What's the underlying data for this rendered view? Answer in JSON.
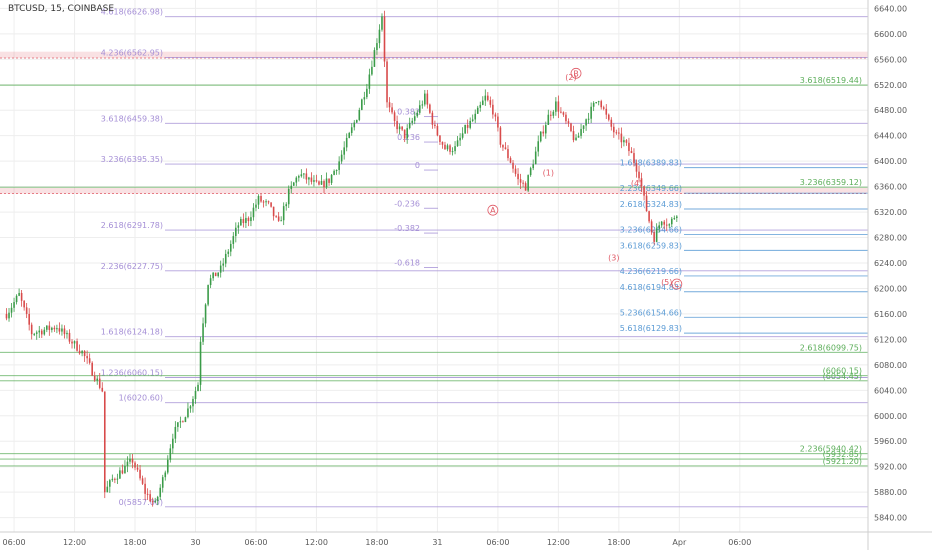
{
  "header": {
    "symbol_title": "BTCUSD, 15, COINBASE"
  },
  "colors": {
    "up": "#3a9b48",
    "down": "#d84a4a",
    "purple": "#a58fd6",
    "green": "#5cae5a",
    "blue": "#5b9bd5",
    "red": "#e05a66",
    "navy": "#3b4a8c",
    "orange": "#f0a43a",
    "grid": "#eeeeee"
  },
  "chart_data": {
    "type": "candlestick",
    "ylim": [
      5830,
      6650
    ],
    "y_ticks": [
      "6640.00",
      "6600.00",
      "6560.00",
      "6520.00",
      "6480.00",
      "6440.00",
      "6400.00",
      "6360.00",
      "6320.00",
      "6280.00",
      "6240.00",
      "6200.00",
      "6160.00",
      "6120.00",
      "6080.00",
      "6040.00",
      "6000.00",
      "5960.00",
      "5920.00",
      "5880.00",
      "5840.00"
    ],
    "x_ticks": [
      "06:00",
      "12:00",
      "18:00",
      "30",
      "06:00",
      "12:00",
      "18:00",
      "31",
      "06:00",
      "12:00",
      "18:00",
      "Apr",
      "06:00"
    ],
    "x_tick_index": [
      3,
      27,
      51,
      75,
      99,
      123,
      147,
      171,
      195,
      219,
      243,
      267,
      291
    ],
    "num_bars": 302,
    "price_path": [
      [
        0,
        6160
      ],
      [
        5,
        6190
      ],
      [
        10,
        6130
      ],
      [
        20,
        6140
      ],
      [
        30,
        6100
      ],
      [
        38,
        6040
      ],
      [
        39,
        5880
      ],
      [
        42,
        5900
      ],
      [
        50,
        5930
      ],
      [
        55,
        5880
      ],
      [
        59,
        5860
      ],
      [
        62,
        5900
      ],
      [
        66,
        5970
      ],
      [
        72,
        6010
      ],
      [
        76,
        6050
      ],
      [
        77,
        6120
      ],
      [
        80,
        6210
      ],
      [
        85,
        6230
      ],
      [
        88,
        6260
      ],
      [
        92,
        6300
      ],
      [
        96,
        6310
      ],
      [
        100,
        6340
      ],
      [
        104,
        6330
      ],
      [
        108,
        6300
      ],
      [
        112,
        6350
      ],
      [
        116,
        6380
      ],
      [
        120,
        6370
      ],
      [
        124,
        6360
      ],
      [
        128,
        6370
      ],
      [
        132,
        6400
      ],
      [
        135,
        6430
      ],
      [
        139,
        6470
      ],
      [
        143,
        6520
      ],
      [
        147,
        6590
      ],
      [
        149,
        6630
      ],
      [
        151,
        6490
      ],
      [
        154,
        6460
      ],
      [
        158,
        6440
      ],
      [
        162,
        6470
      ],
      [
        166,
        6500
      ],
      [
        170,
        6450
      ],
      [
        174,
        6420
      ],
      [
        178,
        6420
      ],
      [
        182,
        6450
      ],
      [
        186,
        6470
      ],
      [
        190,
        6500
      ],
      [
        193,
        6480
      ],
      [
        196,
        6430
      ],
      [
        200,
        6400
      ],
      [
        203,
        6370
      ],
      [
        206,
        6360
      ],
      [
        209,
        6400
      ],
      [
        212,
        6440
      ],
      [
        215,
        6470
      ],
      [
        218,
        6490
      ],
      [
        222,
        6460
      ],
      [
        226,
        6430
      ],
      [
        229,
        6460
      ],
      [
        232,
        6480
      ],
      [
        235,
        6500
      ],
      [
        239,
        6460
      ],
      [
        242,
        6440
      ],
      [
        245,
        6430
      ],
      [
        248,
        6410
      ],
      [
        251,
        6380
      ],
      [
        253,
        6340
      ],
      [
        256,
        6290
      ],
      [
        257,
        6280
      ],
      [
        260,
        6310
      ],
      [
        263,
        6300
      ],
      [
        266,
        6320
      ]
    ],
    "fib_sets": [
      {
        "name": "fib-left",
        "color": "purple",
        "levels": [
          {
            "label": "4.618(6626.98)",
            "price": 6626.98
          },
          {
            "label": "4.236(6562.95)",
            "price": 6562.95
          },
          {
            "label": "3.618(6459.38)",
            "price": 6459.38
          },
          {
            "label": "3.236(6395.35)",
            "price": 6395.35
          },
          {
            "label": "2.618(6291.78)",
            "price": 6291.78
          },
          {
            "label": "2.236(6227.75)",
            "price": 6227.75
          },
          {
            "label": "1.618(6124.18)",
            "price": 6124.18
          },
          {
            "label": "1.236(6060.15)",
            "price": 6060.15
          },
          {
            "label": "1(6020.60)",
            "price": 6020.6
          },
          {
            "label": "0(5857.00)",
            "price": 5857.0
          }
        ]
      },
      {
        "name": "fib-mid",
        "color": "purple",
        "levels": [
          {
            "label": "0.382",
            "price": 6470
          },
          {
            "label": "0.236",
            "price": 6430
          },
          {
            "label": "0",
            "price": 6386
          },
          {
            "label": "-0.236",
            "price": 6326
          },
          {
            "label": "-0.382",
            "price": 6287
          },
          {
            "label": "-0.618",
            "price": 6233
          }
        ]
      },
      {
        "name": "fib-right",
        "color": "blue",
        "levels": [
          {
            "label": "1.618(6389.83)",
            "price": 6389.83
          },
          {
            "label": "2.236(6349.66)",
            "price": 6349.66
          },
          {
            "label": "2.618(6324.83)",
            "price": 6324.83
          },
          {
            "label": "3.236(6284.66)",
            "price": 6284.66
          },
          {
            "label": "3.618(6259.83)",
            "price": 6259.83
          },
          {
            "label": "4.236(6219.66)",
            "price": 6219.66
          },
          {
            "label": "4.618(6194.83)",
            "price": 6194.83
          },
          {
            "label": "5.236(6154.66)",
            "price": 6154.66
          },
          {
            "label": "5.618(6129.83)",
            "price": 6129.83
          }
        ]
      },
      {
        "name": "fib-green",
        "color": "green",
        "levels": [
          {
            "label": "3.618(6519.44)",
            "price": 6519.44
          },
          {
            "label": "3.236(6359.12)",
            "price": 6359.12
          },
          {
            "label": "2.618(6099.75)",
            "price": 6099.75
          },
          {
            "label": "(6060.15)",
            "price": 6063
          },
          {
            "label": "(6054.45)",
            "price": 6055
          },
          {
            "label": "2.236(5940.42)",
            "price": 5940.42
          },
          {
            "label": "(5932.85)",
            "price": 5932
          },
          {
            "label": "(5921.20)",
            "price": 5921.2
          }
        ]
      }
    ],
    "zones": [
      {
        "price_top": 6572,
        "price_bottom": 6562,
        "color": "red"
      },
      {
        "price_top": 6358,
        "price_bottom": 6349,
        "color": "red"
      }
    ],
    "wave_labels": [
      {
        "text": "B",
        "circled": true,
        "bar": 226,
        "price": 6538
      },
      {
        "text": "(2)",
        "circled": false,
        "bar": 224,
        "price": 6532
      },
      {
        "text": "A",
        "circled": true,
        "bar": 193,
        "price": 6323
      },
      {
        "text": "(1)",
        "circled": false,
        "bar": 215,
        "price": 6382
      },
      {
        "text": "(4)",
        "circled": false,
        "bar": 250,
        "price": 6366
      },
      {
        "text": "(3)",
        "circled": false,
        "bar": 241,
        "price": 6249
      },
      {
        "text": "(5)",
        "circled": false,
        "bar": 262,
        "price": 6210
      },
      {
        "text": "C",
        "circled": true,
        "bar": 266,
        "price": 6207
      }
    ]
  }
}
